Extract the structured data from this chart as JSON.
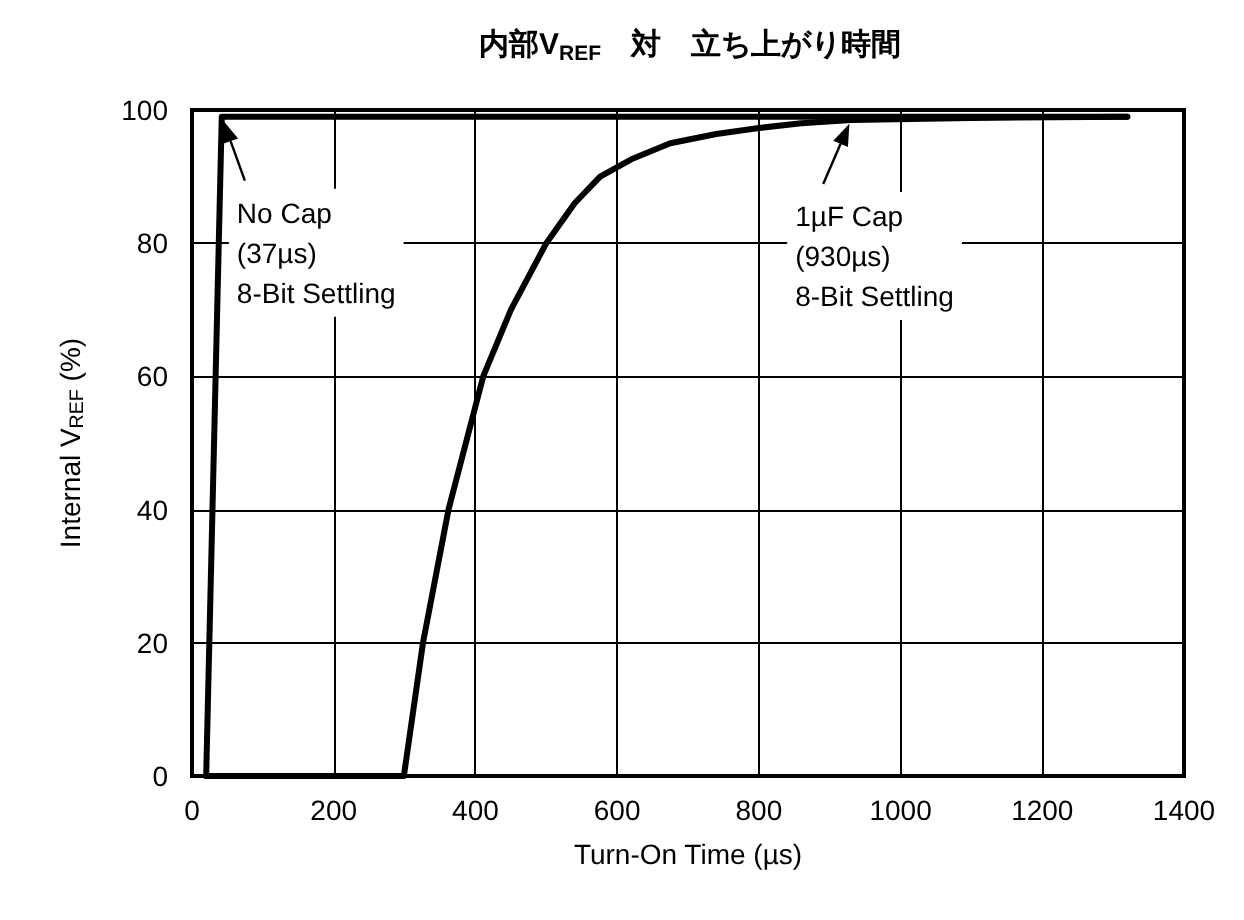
{
  "chart_data": {
    "type": "line",
    "title": "内部V$_{REF}$　対　立ち上がり時間",
    "xlabel": "Turn-On Time (µs)",
    "ylabel": "Internal V$_{REF}$ (%)",
    "series": [
      {
        "color": "#000000",
        "x": [
          20,
          42,
          1320
        ],
        "values": [
          0,
          99,
          99
        ]
      },
      {
        "color": "#000000",
        "x": [
          20,
          299,
          326,
          362,
          411,
          450,
          500,
          540,
          576,
          620,
          675,
          740,
          800,
          860,
          930,
          1100,
          1320
        ],
        "values": [
          0,
          0,
          20,
          40,
          60,
          70,
          80,
          86,
          90,
          92.6,
          95,
          96.4,
          97.3,
          98,
          98.5,
          98.8,
          99
        ]
      }
    ],
    "annotations": [
      {
        "text": "No Cap\n(37µs)\n8-Bit Settling",
        "x": 42,
        "y": 99
      },
      {
        "text": "1µF Cap\n(930µs)\n8-Bit Settling",
        "x": 930,
        "y": 98.5
      }
    ],
    "xlim": [
      0,
      1400
    ],
    "xticks": [
      0,
      200,
      400,
      600,
      800,
      1000,
      1200,
      1400
    ],
    "ylim": [
      0,
      100
    ],
    "yticks": [
      0,
      20,
      40,
      60,
      80,
      100
    ],
    "grid": true,
    "marker": "none",
    "line_style": "solid"
  }
}
